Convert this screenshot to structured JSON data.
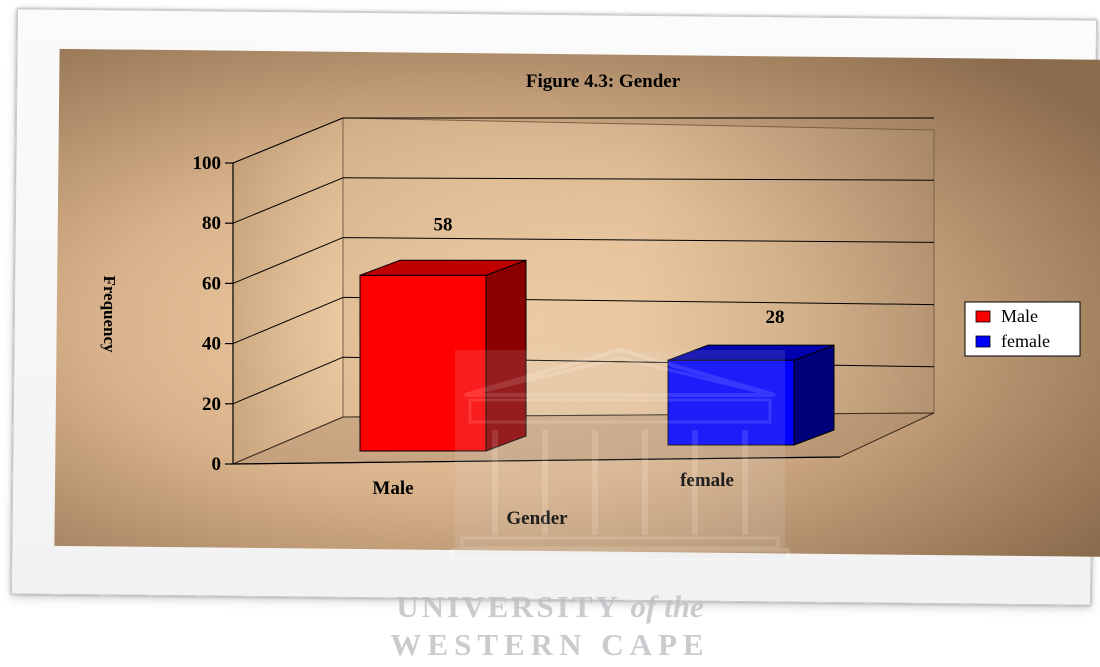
{
  "chart_data": {
    "type": "bar",
    "title": "Figure 4.3: Gender",
    "xlabel": "Gender",
    "ylabel": "Frequency",
    "categories": [
      "Male",
      "female"
    ],
    "values": [
      58,
      28
    ],
    "colors": [
      "#ff0000",
      "#0000ff"
    ],
    "ylim": [
      0,
      100
    ],
    "yticks": [
      0,
      20,
      40,
      60,
      80,
      100
    ],
    "legend": {
      "position": "right",
      "entries": [
        "Male",
        "female"
      ]
    },
    "grid": true,
    "style": "3d"
  },
  "watermark": {
    "line1": "UNIVERSITY",
    "line1_italic": "of the",
    "line2": "WESTERN CAPE"
  }
}
